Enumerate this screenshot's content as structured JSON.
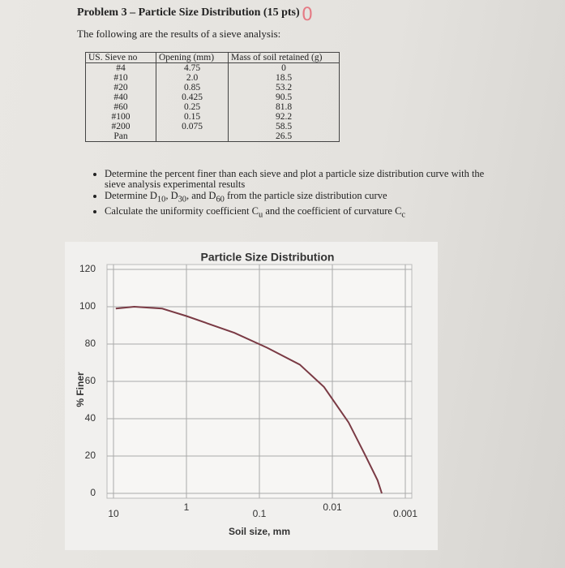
{
  "header": {
    "title": "Problem 3 – Particle Size Distribution (15 pts)",
    "grade_mark": "0",
    "intro": "The following are the results of a sieve analysis:"
  },
  "table": {
    "headers": [
      "US. Sieve no",
      "Opening (mm)",
      "Mass of soil retained (g)"
    ],
    "rows": [
      [
        "#4",
        "4.75",
        "0"
      ],
      [
        "#10",
        "2.0",
        "18.5"
      ],
      [
        "#20",
        "0.85",
        "53.2"
      ],
      [
        "#40",
        "0.425",
        "90.5"
      ],
      [
        "#60",
        "0.25",
        "81.8"
      ],
      [
        "#100",
        "0.15",
        "92.2"
      ],
      [
        "#200",
        "0.075",
        "58.5"
      ],
      [
        "Pan",
        null,
        "26.5"
      ]
    ]
  },
  "bullets": [
    [
      "Determine the percent finer than each sieve and plot a particle size distribution curve with the sieve analysis experimental results"
    ],
    [
      "Determine D",
      "10",
      ", D",
      "30",
      ", and D",
      "60",
      " from the particle size distribution curve"
    ],
    [
      "Calculate the uniformity coefficient C",
      "u",
      " and the coefficient of curvature C",
      "c"
    ]
  ],
  "chart_data": {
    "type": "line",
    "title": "Particle Size Distribution",
    "x_label": "Soil size, mm",
    "y_label": "% Finer",
    "x_scale": "log",
    "xlim": [
      10,
      0.001
    ],
    "ylim": [
      0,
      120
    ],
    "xticks": [
      10,
      1,
      0.1,
      0.01,
      0.001
    ],
    "yticks": [
      0,
      20,
      40,
      60,
      80,
      100,
      120
    ],
    "grid": true,
    "series": [
      {
        "name": "% Finer",
        "color": "#7a3a44",
        "x": [
          9.3,
          5.2,
          2.15,
          1,
          0.22,
          0.078,
          0.028,
          0.013,
          0.006,
          0.0036,
          0.0024,
          0.0021
        ],
        "values": [
          99,
          100,
          99,
          95,
          86,
          78,
          69,
          57,
          38,
          21,
          7,
          0
        ]
      }
    ]
  }
}
